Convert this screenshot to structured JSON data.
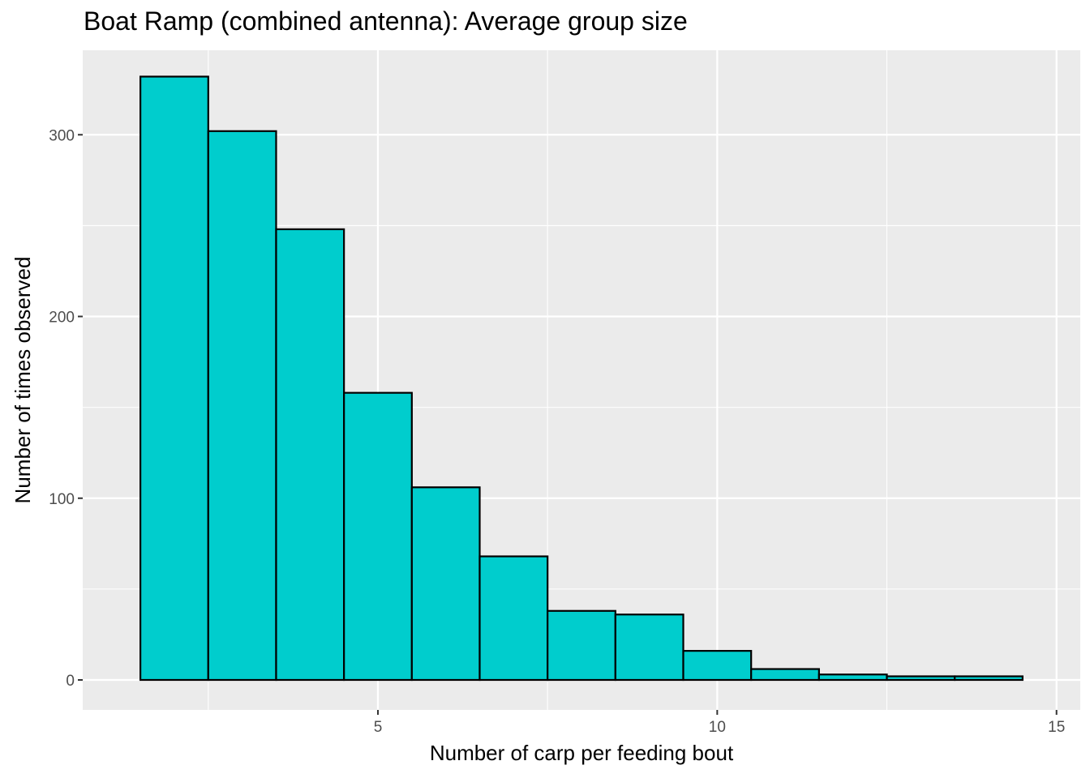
{
  "chart_data": {
    "type": "bar",
    "title": "Boat Ramp (combined antenna): Average group size",
    "xlabel": "Number of carp per feeding bout",
    "ylabel": "Number of times observed",
    "xlim": [
      0.65,
      15.35
    ],
    "ylim": [
      -16.5,
      346.5
    ],
    "x_ticks": [
      5,
      10,
      15
    ],
    "y_ticks": [
      0,
      100,
      200,
      300
    ],
    "grid": true,
    "colors": {
      "bar_fill": "#00CDCD",
      "bar_stroke": "#000000",
      "panel_bg": "#EBEBEB",
      "grid": "#FFFFFF"
    },
    "bins": [
      {
        "x0": 1.5,
        "x1": 2.5,
        "count": 332
      },
      {
        "x0": 2.5,
        "x1": 3.5,
        "count": 302
      },
      {
        "x0": 3.5,
        "x1": 4.5,
        "count": 248
      },
      {
        "x0": 4.5,
        "x1": 5.5,
        "count": 158
      },
      {
        "x0": 5.5,
        "x1": 6.5,
        "count": 106
      },
      {
        "x0": 6.5,
        "x1": 7.5,
        "count": 68
      },
      {
        "x0": 7.5,
        "x1": 8.5,
        "count": 38
      },
      {
        "x0": 8.5,
        "x1": 9.5,
        "count": 36
      },
      {
        "x0": 9.5,
        "x1": 10.5,
        "count": 16
      },
      {
        "x0": 10.5,
        "x1": 11.5,
        "count": 6
      },
      {
        "x0": 11.5,
        "x1": 12.5,
        "count": 3
      },
      {
        "x0": 12.5,
        "x1": 13.5,
        "count": 2
      },
      {
        "x0": 13.5,
        "x1": 14.5,
        "count": 2
      }
    ]
  }
}
